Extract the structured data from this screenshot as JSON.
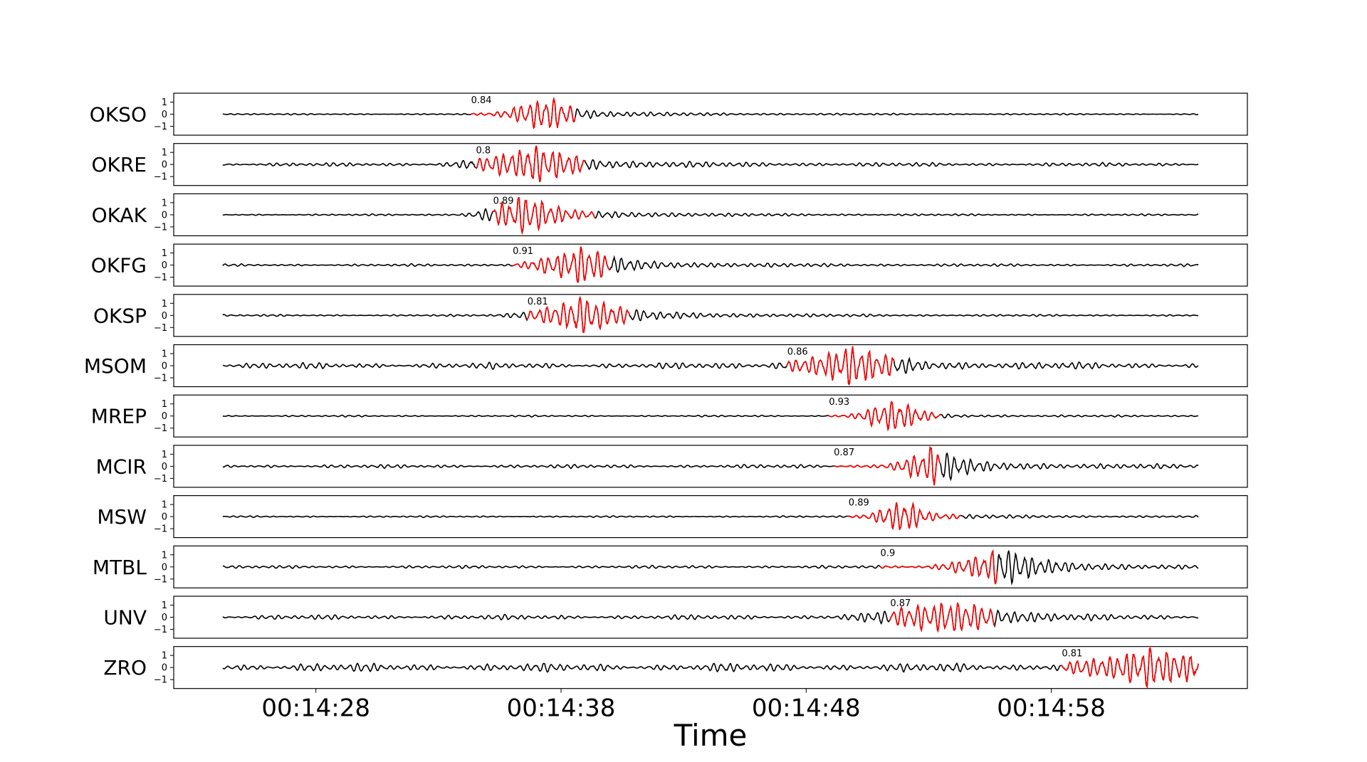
{
  "chart_data": {
    "type": "line",
    "xlabel": "Time",
    "x_tick_labels": [
      "00:14:28",
      "00:14:38",
      "00:14:48",
      "00:14:58"
    ],
    "x_ticks_seconds": [
      868,
      878,
      888,
      898
    ],
    "xlim_seconds": [
      862.2,
      906.0
    ],
    "trace_time_range_seconds": [
      864.2,
      904.0
    ],
    "y_tick_labels": [
      "1",
      "0",
      "−1"
    ],
    "ylim": [
      -1.7,
      1.7
    ],
    "colors": {
      "trace": "#000000",
      "pick": "#ff0000"
    },
    "panels": [
      {
        "station": "OKSO",
        "cc": "0.84",
        "window_seconds": [
          874.3,
          878.6
        ],
        "background_amp": 0.06,
        "burst_center": 877.2,
        "burst_width": 1.3,
        "burst_amp": 1.0,
        "coda_amp": 0.3,
        "period": 0.33
      },
      {
        "station": "OKRE",
        "cc": "0.8",
        "window_seconds": [
          874.5,
          879.0
        ],
        "background_amp": 0.15,
        "burst_center": 876.5,
        "burst_width": 2.0,
        "burst_amp": 0.9,
        "coda_amp": 0.45,
        "period": 0.33
      },
      {
        "station": "OKAK",
        "cc": "0.89",
        "window_seconds": [
          875.2,
          879.4
        ],
        "background_amp": 0.07,
        "burst_center": 876.2,
        "burst_width": 1.4,
        "burst_amp": 1.0,
        "coda_amp": 0.5,
        "period": 0.33
      },
      {
        "station": "OKFG",
        "cc": "0.91",
        "window_seconds": [
          876.0,
          880.0
        ],
        "background_amp": 0.1,
        "burst_center": 878.5,
        "burst_width": 1.6,
        "burst_amp": 0.95,
        "coda_amp": 0.45,
        "period": 0.33
      },
      {
        "station": "OKSP",
        "cc": "0.81",
        "window_seconds": [
          876.6,
          880.8
        ],
        "background_amp": 0.08,
        "burst_center": 878.5,
        "burst_width": 1.8,
        "burst_amp": 0.9,
        "coda_amp": 0.5,
        "period": 0.33
      },
      {
        "station": "MSOM",
        "cc": "0.86",
        "window_seconds": [
          887.2,
          891.6
        ],
        "background_amp": 0.25,
        "burst_center": 889.5,
        "burst_width": 1.9,
        "burst_amp": 0.95,
        "coda_amp": 0.35,
        "period": 0.33
      },
      {
        "station": "MREP",
        "cc": "0.93",
        "window_seconds": [
          888.9,
          893.5
        ],
        "background_amp": 0.07,
        "burst_center": 891.5,
        "burst_width": 1.2,
        "burst_amp": 1.0,
        "coda_amp": 0.1,
        "period": 0.33
      },
      {
        "station": "MCIR",
        "cc": "0.87",
        "window_seconds": [
          889.1,
          893.5
        ],
        "background_amp": 0.15,
        "burst_center": 893.0,
        "burst_width": 1.2,
        "burst_amp": 1.0,
        "coda_amp": 0.4,
        "period": 0.33
      },
      {
        "station": "MSW",
        "cc": "0.89",
        "window_seconds": [
          889.7,
          894.3
        ],
        "background_amp": 0.07,
        "burst_center": 891.8,
        "burst_width": 1.0,
        "burst_amp": 1.0,
        "coda_amp": 0.2,
        "period": 0.33
      },
      {
        "station": "MTBL",
        "cc": "0.9",
        "window_seconds": [
          891.0,
          895.8
        ],
        "background_amp": 0.12,
        "burst_center": 895.6,
        "burst_width": 1.6,
        "burst_amp": 0.95,
        "coda_amp": 0.5,
        "period": 0.33
      },
      {
        "station": "UNV",
        "cc": "0.87",
        "window_seconds": [
          891.4,
          895.7
        ],
        "background_amp": 0.2,
        "burst_center": 893.5,
        "burst_width": 2.5,
        "burst_amp": 0.85,
        "coda_amp": 0.3,
        "period": 0.33
      },
      {
        "station": "ZRO",
        "cc": "0.81",
        "window_seconds": [
          898.4,
          904.0
        ],
        "background_amp": 0.35,
        "burst_center": 901.8,
        "burst_width": 2.5,
        "burst_amp": 0.9,
        "coda_amp": 0.4,
        "period": 0.33
      }
    ]
  }
}
